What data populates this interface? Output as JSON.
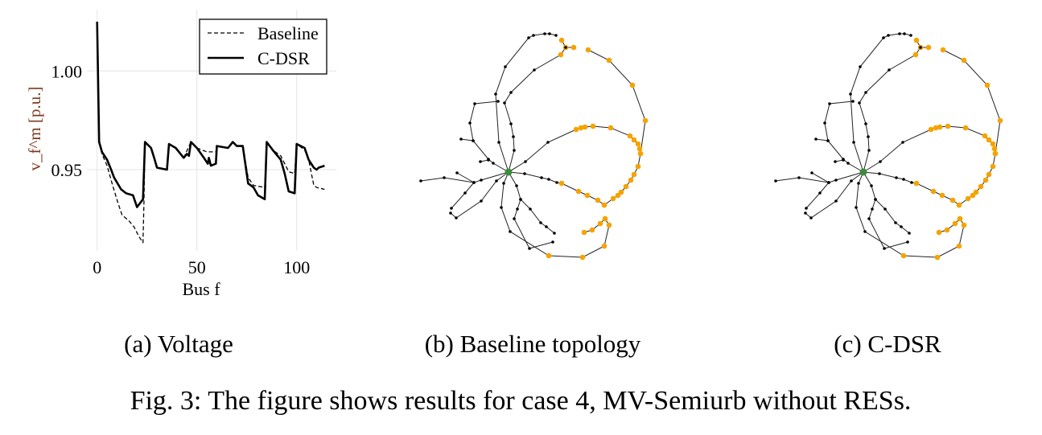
{
  "chart_data": [
    {
      "type": "line",
      "xlabel": "Bus f",
      "ylabel": "v_f^m [p.u.]",
      "xticks": [
        0,
        50,
        100
      ],
      "xtick_labels": [
        "0",
        "50",
        "100"
      ],
      "yticks": [
        0.95,
        1.0
      ],
      "ytick_labels": [
        "0.95",
        "1.00"
      ],
      "xlim": [
        -5,
        120
      ],
      "ylim": [
        0.905,
        1.03
      ],
      "grid": true,
      "legend_position": "top-right",
      "series": [
        {
          "name": "Baseline",
          "style": "dashed",
          "x": [
            0,
            1,
            2.4,
            5,
            7.8,
            10.5,
            12.5,
            16,
            18.5,
            21,
            23,
            23.5,
            24,
            27,
            28.6,
            30,
            35,
            36,
            39.4,
            43.4,
            47,
            50,
            55,
            59.5,
            60,
            65.6,
            68,
            70,
            73,
            75.7,
            78.4,
            84,
            85,
            88,
            92,
            96,
            99,
            100,
            104,
            106,
            108.6,
            110,
            114
          ],
          "y": [
            1.025,
            0.964,
            0.958,
            0.952,
            0.942,
            0.933,
            0.927,
            0.924,
            0.921,
            0.916,
            0.913,
            0.935,
            0.964,
            0.961,
            0.956,
            0.951,
            0.95,
            0.963,
            0.961,
            0.956,
            0.964,
            0.961,
            0.959,
            0.959,
            0.962,
            0.961,
            0.964,
            0.962,
            0.962,
            0.946,
            0.942,
            0.941,
            0.964,
            0.96,
            0.957,
            0.949,
            0.948,
            0.963,
            0.96,
            0.955,
            0.942,
            0.941,
            0.94
          ]
        },
        {
          "name": "C-DSR",
          "style": "solid",
          "x": [
            0,
            1,
            2.4,
            5,
            7,
            8.5,
            12,
            14.5,
            18,
            20,
            23,
            24,
            27,
            28.6,
            30,
            35,
            36,
            39.4,
            43.4,
            45,
            46,
            47,
            50,
            53.5,
            55.5,
            56,
            57,
            59.5,
            60,
            65.6,
            68,
            70,
            73,
            75.7,
            78.4,
            80.6,
            84,
            85,
            88,
            92,
            94,
            96,
            99,
            100,
            104,
            106,
            108.6,
            110,
            111,
            114
          ],
          "y": [
            1.025,
            0.964,
            0.959,
            0.955,
            0.95,
            0.946,
            0.94,
            0.938,
            0.937,
            0.931,
            0.935,
            0.964,
            0.961,
            0.956,
            0.951,
            0.95,
            0.963,
            0.961,
            0.956,
            0.958,
            0.957,
            0.964,
            0.961,
            0.956,
            0.953,
            0.956,
            0.952,
            0.953,
            0.962,
            0.961,
            0.964,
            0.962,
            0.962,
            0.943,
            0.941,
            0.937,
            0.935,
            0.964,
            0.96,
            0.955,
            0.948,
            0.939,
            0.938,
            0.963,
            0.961,
            0.955,
            0.951,
            0.95,
            0.951,
            0.952
          ]
        }
      ]
    }
  ],
  "colors": {
    "res_node": "#f5a300",
    "substation_node": "#3d8b3d",
    "node": "#000000"
  },
  "captions": {
    "a": "(a) Voltage",
    "b": "(b) Baseline topology",
    "c": "(c) C-DSR"
  },
  "figure_caption": "Fig. 3: The figure shows results for case 4, MV-Semiurb without RESs."
}
